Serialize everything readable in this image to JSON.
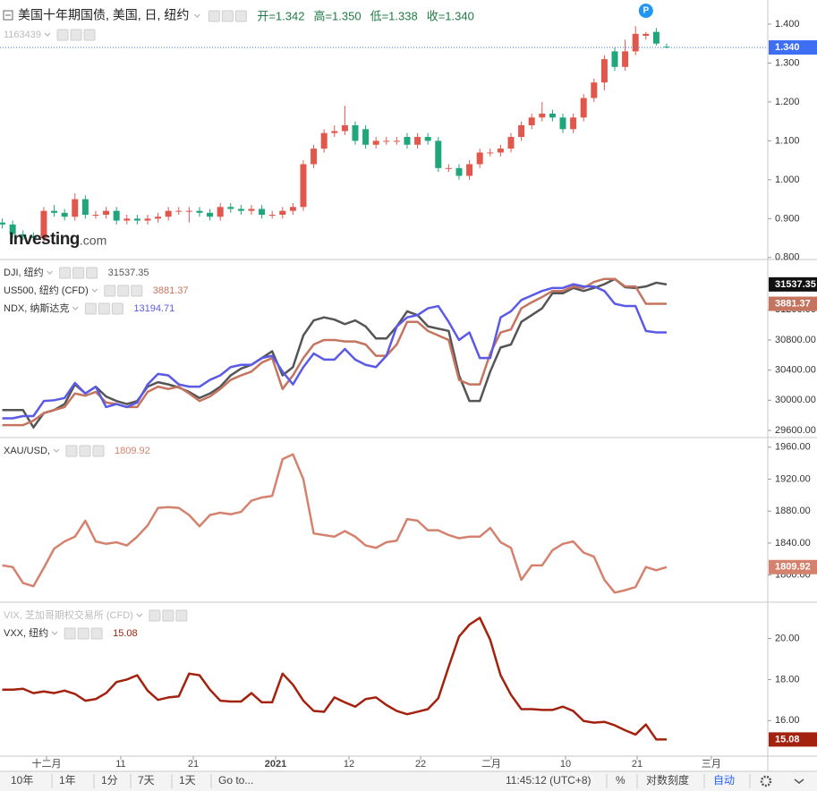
{
  "x_axis": {
    "xlim": [
      -0.22,
      73.74
    ],
    "xticks": [
      {
        "value": 4.26,
        "label": "十二月"
      },
      {
        "value": 11.41,
        "label": "11"
      },
      {
        "value": 18.4,
        "label": "21"
      },
      {
        "value": 26.33,
        "label": "2021"
      },
      {
        "value": 33.4,
        "label": "12"
      },
      {
        "value": 40.3,
        "label": "22"
      },
      {
        "value": 47.1,
        "label": "二月"
      },
      {
        "value": 54.26,
        "label": "10"
      },
      {
        "value": 61.16,
        "label": "21"
      },
      {
        "value": 68.3,
        "label": "三月"
      }
    ]
  },
  "chart_data": [
    {
      "type": "candlestick",
      "title": "美国十年期国债, 美国, 日, 纽约",
      "subtitle": "1163439",
      "ohlc_labels": [
        "开=1.342",
        "高=1.350",
        "低=1.338",
        "收=1.340"
      ],
      "ohlc_color": "#1f7a45",
      "last_label": "1.340",
      "last_color": "#3e6ff2",
      "marker": "P",
      "marker_color": "#2196f3",
      "logo": "Investing",
      "logo_suffix": ".com",
      "up_color": "#e2574c",
      "down_color": "#1fa67a",
      "open": [
        0.89,
        0.885,
        0.86,
        0.855,
        0.85,
        0.92,
        0.915,
        0.905,
        0.95,
        0.91,
        0.91,
        0.92,
        0.895,
        0.9,
        0.895,
        0.9,
        0.905,
        0.92,
        0.92,
        0.92,
        0.915,
        0.905,
        0.93,
        0.925,
        0.92,
        0.925,
        0.91,
        0.91,
        0.92,
        0.93,
        1.04,
        1.08,
        1.12,
        1.125,
        1.14,
        1.13,
        1.09,
        1.1,
        1.1,
        1.11,
        1.09,
        1.11,
        1.1,
        1.03,
        1.03,
        1.01,
        1.04,
        1.07,
        1.07,
        1.08,
        1.11,
        1.14,
        1.16,
        1.17,
        1.16,
        1.13,
        1.16,
        1.21,
        1.25,
        1.33,
        1.29,
        1.33,
        1.37,
        1.38,
        1.342
      ],
      "high": [
        0.9,
        0.895,
        0.87,
        0.865,
        0.93,
        0.935,
        0.925,
        0.965,
        0.96,
        0.92,
        0.93,
        0.93,
        0.91,
        0.91,
        0.91,
        0.915,
        0.93,
        0.93,
        0.93,
        0.93,
        0.925,
        0.94,
        0.94,
        0.935,
        0.935,
        0.935,
        0.92,
        0.93,
        0.94,
        1.05,
        1.09,
        1.13,
        1.14,
        1.19,
        1.15,
        1.14,
        1.11,
        1.11,
        1.11,
        1.12,
        1.12,
        1.12,
        1.11,
        1.04,
        1.04,
        1.05,
        1.08,
        1.08,
        1.09,
        1.12,
        1.15,
        1.17,
        1.2,
        1.18,
        1.17,
        1.17,
        1.22,
        1.26,
        1.32,
        1.34,
        1.36,
        1.395,
        1.38,
        1.39,
        1.35
      ],
      "low": [
        0.875,
        0.85,
        0.845,
        0.84,
        0.84,
        0.905,
        0.895,
        0.895,
        0.9,
        0.9,
        0.9,
        0.885,
        0.885,
        0.885,
        0.885,
        0.89,
        0.895,
        0.91,
        0.89,
        0.905,
        0.895,
        0.895,
        0.915,
        0.91,
        0.91,
        0.9,
        0.9,
        0.9,
        0.91,
        0.92,
        1.03,
        1.07,
        1.11,
        1.115,
        1.09,
        1.08,
        1.08,
        1.09,
        1.09,
        1.08,
        1.08,
        1.09,
        1.02,
        1.02,
        1.0,
        1.0,
        1.03,
        1.06,
        1.06,
        1.07,
        1.1,
        1.13,
        1.15,
        1.15,
        1.12,
        1.12,
        1.15,
        1.2,
        1.23,
        1.28,
        1.28,
        1.32,
        1.36,
        1.345,
        1.338
      ],
      "close": [
        0.885,
        0.86,
        0.855,
        0.85,
        0.92,
        0.915,
        0.905,
        0.95,
        0.91,
        0.91,
        0.92,
        0.895,
        0.9,
        0.895,
        0.9,
        0.905,
        0.92,
        0.92,
        0.92,
        0.915,
        0.905,
        0.93,
        0.925,
        0.92,
        0.925,
        0.91,
        0.91,
        0.92,
        0.93,
        1.04,
        1.08,
        1.12,
        1.125,
        1.14,
        1.1,
        1.09,
        1.1,
        1.1,
        1.1,
        1.09,
        1.11,
        1.1,
        1.03,
        1.03,
        1.01,
        1.04,
        1.07,
        1.07,
        1.08,
        1.11,
        1.14,
        1.16,
        1.17,
        1.16,
        1.13,
        1.16,
        1.21,
        1.25,
        1.31,
        1.29,
        1.33,
        1.375,
        1.375,
        1.35,
        1.34
      ],
      "ylim": [
        0.795,
        1.462
      ],
      "yticks": [
        {
          "value": 0.8,
          "label": "0.800"
        },
        {
          "value": 0.9,
          "label": "0.900"
        },
        {
          "value": 1.0,
          "label": "1.000"
        },
        {
          "value": 1.1,
          "label": "1.100"
        },
        {
          "value": 1.2,
          "label": "1.200"
        },
        {
          "value": 1.3,
          "label": "1.300"
        },
        {
          "value": 1.4,
          "label": "1.400"
        }
      ]
    },
    {
      "type": "line",
      "ylim": [
        29505,
        31868
      ],
      "yticks": [
        {
          "value": 29600,
          "label": "29600.00"
        },
        {
          "value": 30000,
          "label": "30000.00"
        },
        {
          "value": 30400,
          "label": "30400.00"
        },
        {
          "value": 30800,
          "label": "30800.00"
        },
        {
          "value": 31200,
          "label": "31200.00"
        }
      ],
      "series": [
        {
          "name": "DJI, 纽约",
          "legend_value": "31537.35",
          "color": "#555555",
          "badge": true,
          "values": [
            29870,
            29870,
            29870,
            29640,
            29830,
            29870,
            29950,
            30210,
            30090,
            30180,
            30050,
            29990,
            29950,
            29990,
            30180,
            30240,
            30210,
            30170,
            30110,
            30030,
            30090,
            30180,
            30330,
            30420,
            30470,
            30560,
            30650,
            30330,
            30440,
            30860,
            31060,
            31100,
            31070,
            31010,
            31060,
            30980,
            30820,
            30820,
            30980,
            31180,
            31130,
            30980,
            30950,
            30920,
            30330,
            29990,
            29990,
            30380,
            30700,
            30740,
            31040,
            31130,
            31220,
            31420,
            31420,
            31490,
            31450,
            31490,
            31540,
            31610,
            31500,
            31490,
            31510,
            31560,
            31537.35
          ]
        },
        {
          "name": "US500, 纽约 (CFD)",
          "legend_value": "3881.37",
          "color": "#c4745f",
          "badge": true,
          "values": [
            29670,
            29670,
            29670,
            29730,
            29830,
            29870,
            29910,
            30090,
            30060,
            30110,
            29970,
            29950,
            29910,
            29910,
            30110,
            30180,
            30150,
            30180,
            30090,
            29990,
            30050,
            30150,
            30270,
            30330,
            30380,
            30500,
            30560,
            30150,
            30330,
            30560,
            30740,
            30800,
            30800,
            30780,
            30780,
            30740,
            30590,
            30590,
            30740,
            31040,
            31040,
            30920,
            30860,
            30800,
            30270,
            30210,
            30210,
            30620,
            30900,
            30940,
            31220,
            31300,
            31370,
            31450,
            31450,
            31510,
            31490,
            31570,
            31610,
            31610,
            31510,
            31510,
            31280,
            31280,
            31280
          ]
        },
        {
          "name": "NDX, 纳斯达克",
          "legend_value": "13194.71",
          "color": "#5a5ae6",
          "badge": false,
          "values": [
            29760,
            29760,
            29790,
            29790,
            29990,
            30000,
            30030,
            30230,
            30090,
            30180,
            29910,
            29950,
            29910,
            29970,
            30210,
            30350,
            30330,
            30210,
            30180,
            30180,
            30270,
            30330,
            30440,
            30470,
            30470,
            30560,
            30590,
            30380,
            30210,
            30440,
            30620,
            30540,
            30540,
            30680,
            30540,
            30470,
            30440,
            30590,
            30980,
            31100,
            31130,
            31220,
            31250,
            31040,
            30800,
            30900,
            30560,
            30560,
            31100,
            31180,
            31330,
            31390,
            31450,
            31490,
            31490,
            31540,
            31510,
            31510,
            31450,
            31280,
            31250,
            31250,
            30920,
            30900,
            30900
          ]
        }
      ]
    },
    {
      "type": "line",
      "ylim": [
        1766,
        1972
      ],
      "yticks": [
        {
          "value": 1800,
          "label": "1800.00"
        },
        {
          "value": 1840,
          "label": "1840.00"
        },
        {
          "value": 1880,
          "label": "1880.00"
        },
        {
          "value": 1920,
          "label": "1920.00"
        },
        {
          "value": 1960,
          "label": "1960.00"
        }
      ],
      "series": [
        {
          "name": "XAU/USD,",
          "legend_value": "1809.92",
          "color": "#d4826e",
          "badge": true,
          "values": [
            1812,
            1810,
            1790,
            1786,
            1809,
            1833,
            1842,
            1848,
            1868,
            1842,
            1839,
            1841,
            1837,
            1848,
            1862,
            1884,
            1885,
            1884,
            1875,
            1861,
            1875,
            1878,
            1876,
            1879,
            1893,
            1897,
            1899,
            1945,
            1951,
            1920,
            1852,
            1850,
            1848,
            1855,
            1848,
            1837,
            1834,
            1841,
            1843,
            1870,
            1868,
            1856,
            1856,
            1850,
            1846,
            1848,
            1848,
            1859,
            1841,
            1834,
            1794,
            1812,
            1812,
            1831,
            1839,
            1842,
            1828,
            1823,
            1794,
            1778,
            1781,
            1785,
            1810,
            1806,
            1809.92
          ]
        }
      ]
    },
    {
      "type": "line",
      "ylim": [
        14.27,
        21.77
      ],
      "inactive_series_name": "VIX, 芝加哥期权交易所 (CFD)",
      "yticks": [
        {
          "value": 16,
          "label": "16.00"
        },
        {
          "value": 18,
          "label": "18.00"
        },
        {
          "value": 20,
          "label": "20.00"
        }
      ],
      "series": [
        {
          "name": "VXX, 纽约",
          "legend_value": "15.08",
          "color": "#a3220f",
          "badge": true,
          "values": [
            17.51,
            17.51,
            17.55,
            17.34,
            17.42,
            17.34,
            17.46,
            17.3,
            16.97,
            17.05,
            17.34,
            17.88,
            18.0,
            18.21,
            17.46,
            17.01,
            17.13,
            17.18,
            18.29,
            18.21,
            17.51,
            16.97,
            16.93,
            16.93,
            17.34,
            16.89,
            16.89,
            18.29,
            17.75,
            16.97,
            16.47,
            16.43,
            17.13,
            16.89,
            16.68,
            17.05,
            17.13,
            16.76,
            16.47,
            16.31,
            16.43,
            16.56,
            17.09,
            18.62,
            20.1,
            20.68,
            21.01,
            19.94,
            18.21,
            17.26,
            16.56,
            16.56,
            16.52,
            16.52,
            16.68,
            16.47,
            15.98,
            15.9,
            15.94,
            15.77,
            15.53,
            15.32,
            15.81,
            15.08,
            15.08
          ]
        }
      ]
    }
  ],
  "toolbar": {
    "left": [
      "10年",
      "1年",
      "1分",
      "7天",
      "1天",
      "Go to..."
    ],
    "time": "11:45:12 (UTC+8)",
    "right": [
      "%",
      "对数刻度",
      "自动"
    ]
  }
}
